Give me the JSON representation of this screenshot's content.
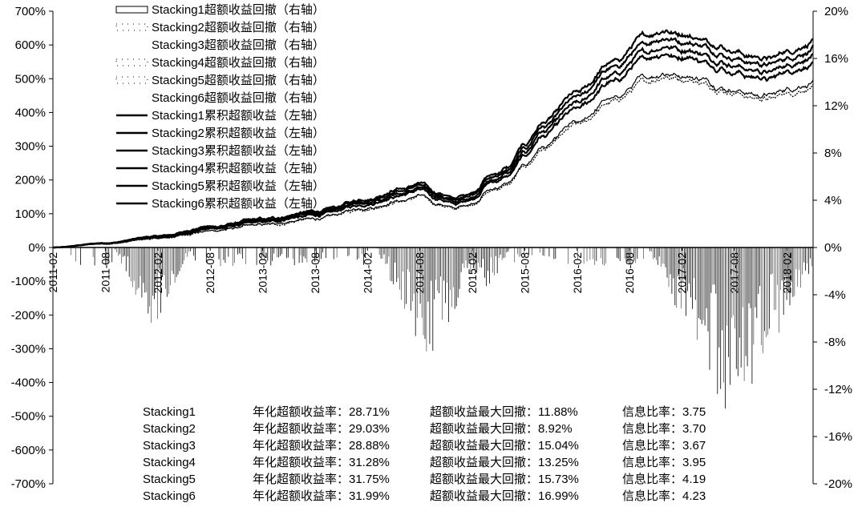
{
  "chart_data": {
    "type": "line",
    "title": "",
    "x_ticks": [
      "2011-02",
      "2011-08",
      "2012-02",
      "2012-08",
      "2013-02",
      "2013-08",
      "2014-02",
      "2014-08",
      "2015-02",
      "2015-08",
      "2016-02",
      "2016-08",
      "2017-02",
      "2017-08",
      "2018-02"
    ],
    "y_left": {
      "range": [
        -7.0,
        7.0
      ],
      "ticks": [
        "700%",
        "600%",
        "500%",
        "400%",
        "300%",
        "200%",
        "100%",
        "0%",
        "-100%",
        "-200%",
        "-300%",
        "-400%",
        "-500%",
        "-600%",
        "-700%"
      ],
      "tick_values": [
        7,
        6,
        5,
        4,
        3,
        2,
        1,
        0,
        -1,
        -2,
        -3,
        -4,
        -5,
        -6,
        -7
      ]
    },
    "y_right": {
      "range": [
        -0.2,
        0.2
      ],
      "ticks": [
        "20%",
        "16%",
        "12%",
        "8%",
        "4%",
        "0%",
        "-4%",
        "-8%",
        "-12%",
        "-16%",
        "-20%"
      ],
      "tick_values": [
        0.2,
        0.16,
        0.12,
        0.08,
        0.04,
        0,
        -0.04,
        -0.08,
        -0.12,
        -0.16,
        -0.2
      ]
    },
    "legend": [
      {
        "label": "Stacking1超额收益回撤（右轴）",
        "style": "outline-bar"
      },
      {
        "label": "Stacking2超额收益回撤（右轴）",
        "style": "dotted-bar"
      },
      {
        "label": "Stacking3超额收益回撤（右轴）",
        "style": "light-bar"
      },
      {
        "label": "Stacking4超额收益回撤（右轴）",
        "style": "dotted-bar"
      },
      {
        "label": "Stacking5超额收益回撤（右轴）",
        "style": "dotted-bar"
      },
      {
        "label": "Stacking6超额收益回撤（右轴）",
        "style": "light-bar"
      },
      {
        "label": "Stacking1累积超额收益（左轴）",
        "style": "line"
      },
      {
        "label": "Stacking2累积超额收益（左轴）",
        "style": "line"
      },
      {
        "label": "Stacking3累积超额收益（左轴）",
        "style": "line"
      },
      {
        "label": "Stacking4累积超额收益（左轴）",
        "style": "line"
      },
      {
        "label": "Stacking5累积超额收益（左轴）",
        "style": "line"
      },
      {
        "label": "Stacking6累积超额收益（左轴）",
        "style": "line"
      }
    ],
    "t_range": [
      0,
      87
    ],
    "cumulative_keypoints": [
      [
        0,
        0.0
      ],
      [
        6,
        0.12
      ],
      [
        12,
        0.3
      ],
      [
        18,
        0.55
      ],
      [
        24,
        0.75
      ],
      [
        30,
        0.95
      ],
      [
        36,
        1.3
      ],
      [
        40,
        1.55
      ],
      [
        42,
        1.7
      ],
      [
        44,
        1.45
      ],
      [
        46,
        1.3
      ],
      [
        48,
        1.45
      ],
      [
        50,
        1.9
      ],
      [
        52,
        2.1
      ],
      [
        54,
        2.7
      ],
      [
        56,
        3.3
      ],
      [
        60,
        4.1
      ],
      [
        64,
        4.9
      ],
      [
        68,
        5.6
      ],
      [
        70,
        5.75
      ],
      [
        72,
        5.65
      ],
      [
        74,
        5.55
      ],
      [
        76,
        5.35
      ],
      [
        78,
        5.2
      ],
      [
        80,
        5.05
      ],
      [
        82,
        5.0
      ],
      [
        84,
        5.2
      ],
      [
        86,
        5.35
      ],
      [
        87,
        5.45
      ]
    ],
    "series": [
      {
        "label_ref": 6,
        "scale": 1.12
      },
      {
        "label_ref": 7,
        "scale": 1.08
      },
      {
        "label_ref": 8,
        "scale": 1.0
      },
      {
        "label_ref": 9,
        "scale": 1.04
      },
      {
        "label_ref": 10,
        "scale": 0.9
      },
      {
        "label_ref": 11,
        "scale": 0.88
      }
    ],
    "drawdown_clusters": [
      {
        "center": 11.5,
        "width": 4.5,
        "depth": -0.075
      },
      {
        "center": 43.0,
        "width": 6.0,
        "depth": -0.108
      },
      {
        "center": 49.5,
        "width": 3.0,
        "depth": -0.04
      },
      {
        "center": 71.5,
        "width": 3.0,
        "depth": -0.03
      },
      {
        "center": 78.0,
        "width": 10.0,
        "depth": -0.155
      }
    ],
    "stats": [
      {
        "name": "Stacking1",
        "ann_label": "年化超额收益率：",
        "ann_value": "28.71%",
        "dd_label": "超额收益最大回撤：",
        "dd_value": "11.88%",
        "ir_label": "信息比率：",
        "ir_value": "3.75"
      },
      {
        "name": "Stacking2",
        "ann_label": "年化超额收益率：",
        "ann_value": "29.03%",
        "dd_label": "超额收益最大回撤：",
        "dd_value": "8.92%",
        "ir_label": "信息比率：",
        "ir_value": "3.70"
      },
      {
        "name": "Stacking3",
        "ann_label": "年化超额收益率：",
        "ann_value": "28.88%",
        "dd_label": "超额收益最大回撤：",
        "dd_value": "15.04%",
        "ir_label": "信息比率：",
        "ir_value": "3.67"
      },
      {
        "name": "Stacking4",
        "ann_label": "年化超额收益率：",
        "ann_value": "31.28%",
        "dd_label": "超额收益最大回撤：",
        "dd_value": "13.25%",
        "ir_label": "信息比率：",
        "ir_value": "3.95"
      },
      {
        "name": "Stacking5",
        "ann_label": "年化超额收益率：",
        "ann_value": "31.75%",
        "dd_label": "超额收益最大回撤：",
        "dd_value": "15.73%",
        "ir_label": "信息比率：",
        "ir_value": "4.19"
      },
      {
        "name": "Stacking6",
        "ann_label": "年化超额收益率：",
        "ann_value": "31.99%",
        "dd_label": "超额收益最大回撤：",
        "dd_value": "16.99%",
        "ir_label": "信息比率：",
        "ir_value": "4.23"
      }
    ],
    "colors": {
      "line": "#000000",
      "bar": "#000000",
      "background": "#ffffff"
    }
  }
}
